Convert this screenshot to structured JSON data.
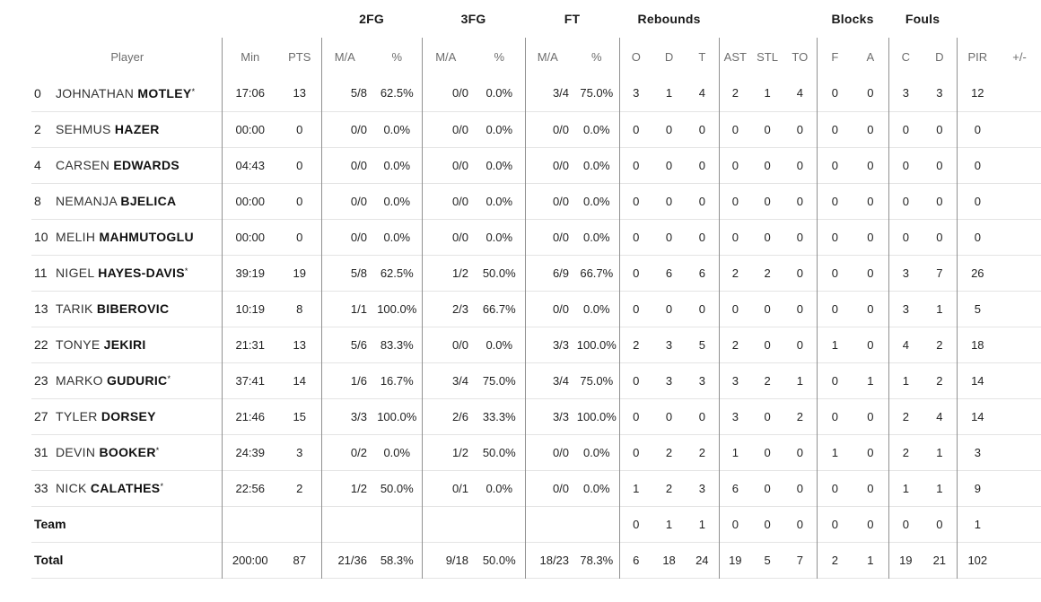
{
  "table": {
    "group_headers": {
      "fg2": "2FG",
      "fg3": "3FG",
      "ft": "FT",
      "rebounds": "Rebounds",
      "blocks": "Blocks",
      "fouls": "Fouls"
    },
    "sub_headers": {
      "player": "Player",
      "min": "Min",
      "pts": "PTS",
      "ma": "M/A",
      "pct": "%",
      "reb_o": "O",
      "reb_d": "D",
      "reb_t": "T",
      "ast": "AST",
      "stl": "STL",
      "to": "TO",
      "blk_f": "F",
      "blk_a": "A",
      "foul_c": "C",
      "foul_d": "D",
      "pir": "PIR",
      "pm": "+/-"
    },
    "starter_marker": "*",
    "colors": {
      "body_text": "#222222",
      "header_text": "#6d6d6d",
      "group_header_text": "#1a1a1a",
      "vertical_line": "#919191",
      "horizontal_line": "#e4e4e4",
      "background": "#ffffff"
    },
    "rows": [
      {
        "num": "0",
        "first": "JOHNATHAN",
        "last": "MOTLEY",
        "starter": true,
        "min": "17:06",
        "pts": "13",
        "fg2_ma": "5/8",
        "fg2_pct": "62.5%",
        "fg3_ma": "0/0",
        "fg3_pct": "0.0%",
        "ft_ma": "3/4",
        "ft_pct": "75.0%",
        "reb_o": "3",
        "reb_d": "1",
        "reb_t": "4",
        "ast": "2",
        "stl": "1",
        "to": "4",
        "blk_f": "0",
        "blk_a": "0",
        "foul_c": "3",
        "foul_d": "3",
        "pir": "12",
        "pm": ""
      },
      {
        "num": "2",
        "first": "SEHMUS",
        "last": "HAZER",
        "starter": false,
        "min": "00:00",
        "pts": "0",
        "fg2_ma": "0/0",
        "fg2_pct": "0.0%",
        "fg3_ma": "0/0",
        "fg3_pct": "0.0%",
        "ft_ma": "0/0",
        "ft_pct": "0.0%",
        "reb_o": "0",
        "reb_d": "0",
        "reb_t": "0",
        "ast": "0",
        "stl": "0",
        "to": "0",
        "blk_f": "0",
        "blk_a": "0",
        "foul_c": "0",
        "foul_d": "0",
        "pir": "0",
        "pm": ""
      },
      {
        "num": "4",
        "first": "CARSEN",
        "last": "EDWARDS",
        "starter": false,
        "min": "04:43",
        "pts": "0",
        "fg2_ma": "0/0",
        "fg2_pct": "0.0%",
        "fg3_ma": "0/0",
        "fg3_pct": "0.0%",
        "ft_ma": "0/0",
        "ft_pct": "0.0%",
        "reb_o": "0",
        "reb_d": "0",
        "reb_t": "0",
        "ast": "0",
        "stl": "0",
        "to": "0",
        "blk_f": "0",
        "blk_a": "0",
        "foul_c": "0",
        "foul_d": "0",
        "pir": "0",
        "pm": ""
      },
      {
        "num": "8",
        "first": "NEMANJA",
        "last": "BJELICA",
        "starter": false,
        "min": "00:00",
        "pts": "0",
        "fg2_ma": "0/0",
        "fg2_pct": "0.0%",
        "fg3_ma": "0/0",
        "fg3_pct": "0.0%",
        "ft_ma": "0/0",
        "ft_pct": "0.0%",
        "reb_o": "0",
        "reb_d": "0",
        "reb_t": "0",
        "ast": "0",
        "stl": "0",
        "to": "0",
        "blk_f": "0",
        "blk_a": "0",
        "foul_c": "0",
        "foul_d": "0",
        "pir": "0",
        "pm": ""
      },
      {
        "num": "10",
        "first": "MELIH",
        "last": "MAHMUTOGLU",
        "starter": false,
        "min": "00:00",
        "pts": "0",
        "fg2_ma": "0/0",
        "fg2_pct": "0.0%",
        "fg3_ma": "0/0",
        "fg3_pct": "0.0%",
        "ft_ma": "0/0",
        "ft_pct": "0.0%",
        "reb_o": "0",
        "reb_d": "0",
        "reb_t": "0",
        "ast": "0",
        "stl": "0",
        "to": "0",
        "blk_f": "0",
        "blk_a": "0",
        "foul_c": "0",
        "foul_d": "0",
        "pir": "0",
        "pm": ""
      },
      {
        "num": "11",
        "first": "NIGEL",
        "last": "HAYES-DAVIS",
        "starter": true,
        "min": "39:19",
        "pts": "19",
        "fg2_ma": "5/8",
        "fg2_pct": "62.5%",
        "fg3_ma": "1/2",
        "fg3_pct": "50.0%",
        "ft_ma": "6/9",
        "ft_pct": "66.7%",
        "reb_o": "0",
        "reb_d": "6",
        "reb_t": "6",
        "ast": "2",
        "stl": "2",
        "to": "0",
        "blk_f": "0",
        "blk_a": "0",
        "foul_c": "3",
        "foul_d": "7",
        "pir": "26",
        "pm": ""
      },
      {
        "num": "13",
        "first": "TARIK",
        "last": "BIBEROVIC",
        "starter": false,
        "min": "10:19",
        "pts": "8",
        "fg2_ma": "1/1",
        "fg2_pct": "100.0%",
        "fg3_ma": "2/3",
        "fg3_pct": "66.7%",
        "ft_ma": "0/0",
        "ft_pct": "0.0%",
        "reb_o": "0",
        "reb_d": "0",
        "reb_t": "0",
        "ast": "0",
        "stl": "0",
        "to": "0",
        "blk_f": "0",
        "blk_a": "0",
        "foul_c": "3",
        "foul_d": "1",
        "pir": "5",
        "pm": ""
      },
      {
        "num": "22",
        "first": "TONYE",
        "last": "JEKIRI",
        "starter": false,
        "min": "21:31",
        "pts": "13",
        "fg2_ma": "5/6",
        "fg2_pct": "83.3%",
        "fg3_ma": "0/0",
        "fg3_pct": "0.0%",
        "ft_ma": "3/3",
        "ft_pct": "100.0%",
        "reb_o": "2",
        "reb_d": "3",
        "reb_t": "5",
        "ast": "2",
        "stl": "0",
        "to": "0",
        "blk_f": "1",
        "blk_a": "0",
        "foul_c": "4",
        "foul_d": "2",
        "pir": "18",
        "pm": ""
      },
      {
        "num": "23",
        "first": "MARKO",
        "last": "GUDURIC",
        "starter": true,
        "min": "37:41",
        "pts": "14",
        "fg2_ma": "1/6",
        "fg2_pct": "16.7%",
        "fg3_ma": "3/4",
        "fg3_pct": "75.0%",
        "ft_ma": "3/4",
        "ft_pct": "75.0%",
        "reb_o": "0",
        "reb_d": "3",
        "reb_t": "3",
        "ast": "3",
        "stl": "2",
        "to": "1",
        "blk_f": "0",
        "blk_a": "1",
        "foul_c": "1",
        "foul_d": "2",
        "pir": "14",
        "pm": ""
      },
      {
        "num": "27",
        "first": "TYLER",
        "last": "DORSEY",
        "starter": false,
        "min": "21:46",
        "pts": "15",
        "fg2_ma": "3/3",
        "fg2_pct": "100.0%",
        "fg3_ma": "2/6",
        "fg3_pct": "33.3%",
        "ft_ma": "3/3",
        "ft_pct": "100.0%",
        "reb_o": "0",
        "reb_d": "0",
        "reb_t": "0",
        "ast": "3",
        "stl": "0",
        "to": "2",
        "blk_f": "0",
        "blk_a": "0",
        "foul_c": "2",
        "foul_d": "4",
        "pir": "14",
        "pm": ""
      },
      {
        "num": "31",
        "first": "DEVIN",
        "last": "BOOKER",
        "starter": true,
        "min": "24:39",
        "pts": "3",
        "fg2_ma": "0/2",
        "fg2_pct": "0.0%",
        "fg3_ma": "1/2",
        "fg3_pct": "50.0%",
        "ft_ma": "0/0",
        "ft_pct": "0.0%",
        "reb_o": "0",
        "reb_d": "2",
        "reb_t": "2",
        "ast": "1",
        "stl": "0",
        "to": "0",
        "blk_f": "1",
        "blk_a": "0",
        "foul_c": "2",
        "foul_d": "1",
        "pir": "3",
        "pm": ""
      },
      {
        "num": "33",
        "first": "NICK",
        "last": "CALATHES",
        "starter": true,
        "min": "22:56",
        "pts": "2",
        "fg2_ma": "1/2",
        "fg2_pct": "50.0%",
        "fg3_ma": "0/1",
        "fg3_pct": "0.0%",
        "ft_ma": "0/0",
        "ft_pct": "0.0%",
        "reb_o": "1",
        "reb_d": "2",
        "reb_t": "3",
        "ast": "6",
        "stl": "0",
        "to": "0",
        "blk_f": "0",
        "blk_a": "0",
        "foul_c": "1",
        "foul_d": "1",
        "pir": "9",
        "pm": ""
      },
      {
        "label": "Team",
        "min": "",
        "pts": "",
        "fg2_ma": "",
        "fg2_pct": "",
        "fg3_ma": "",
        "fg3_pct": "",
        "ft_ma": "",
        "ft_pct": "",
        "reb_o": "0",
        "reb_d": "1",
        "reb_t": "1",
        "ast": "0",
        "stl": "0",
        "to": "0",
        "blk_f": "0",
        "blk_a": "0",
        "foul_c": "0",
        "foul_d": "0",
        "pir": "1",
        "pm": ""
      },
      {
        "label": "Total",
        "min": "200:00",
        "pts": "87",
        "fg2_ma": "21/36",
        "fg2_pct": "58.3%",
        "fg3_ma": "9/18",
        "fg3_pct": "50.0%",
        "ft_ma": "18/23",
        "ft_pct": "78.3%",
        "reb_o": "6",
        "reb_d": "18",
        "reb_t": "24",
        "ast": "19",
        "stl": "5",
        "to": "7",
        "blk_f": "2",
        "blk_a": "1",
        "foul_c": "19",
        "foul_d": "21",
        "pir": "102",
        "pm": ""
      }
    ]
  }
}
